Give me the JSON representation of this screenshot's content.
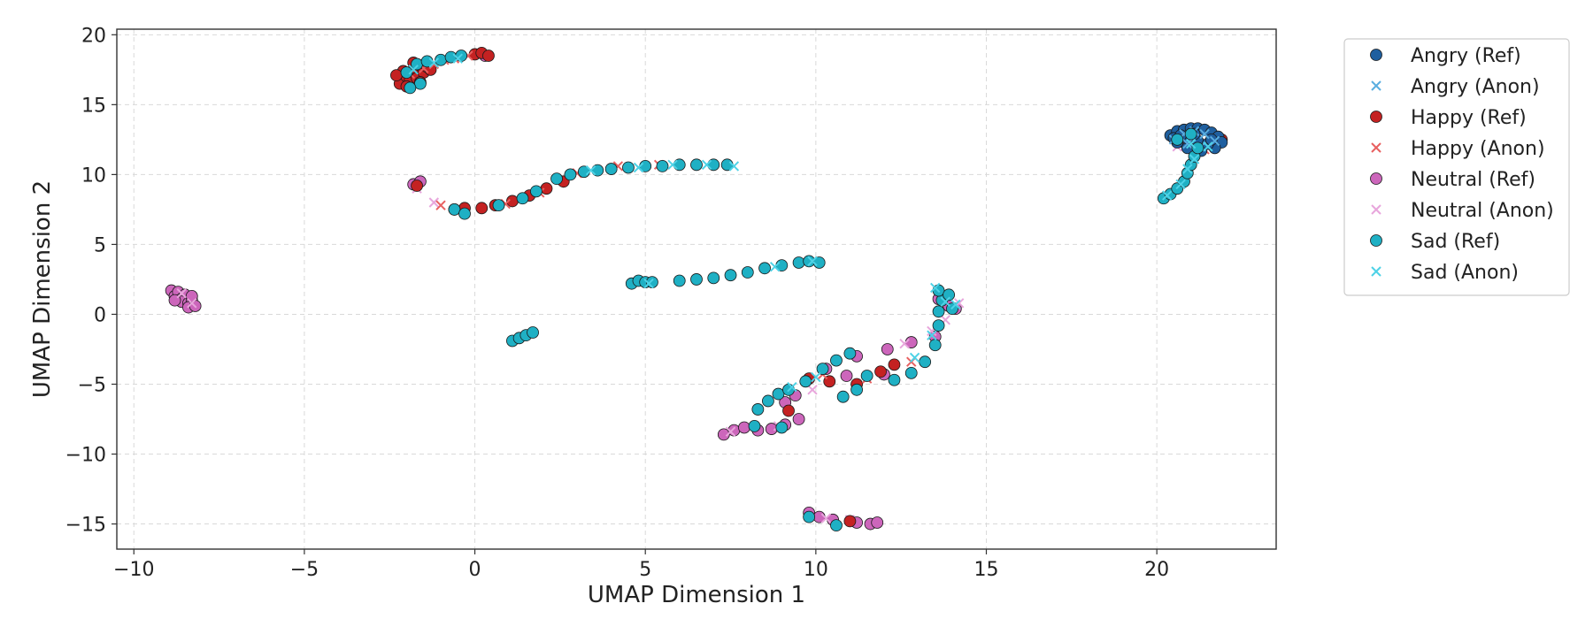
{
  "chart_data": {
    "type": "scatter",
    "title": "",
    "xlabel": "UMAP Dimension 1",
    "ylabel": "UMAP Dimension 2",
    "xlim": [
      -10.5,
      23.5
    ],
    "ylim": [
      -16.8,
      20.4
    ],
    "xticks": [
      -10,
      -5,
      0,
      5,
      10,
      15,
      20
    ],
    "yticks": [
      -15,
      -10,
      -5,
      0,
      5,
      10,
      15,
      20
    ],
    "grid": true,
    "legend_position": "outside-right-top",
    "legend": [
      {
        "label": "Angry (Ref)",
        "color": "#1f5f9f",
        "marker": "circle"
      },
      {
        "label": "Angry (Anon)",
        "color": "#5aaee0",
        "marker": "x"
      },
      {
        "label": "Happy (Ref)",
        "color": "#c42222",
        "marker": "circle"
      },
      {
        "label": "Happy (Anon)",
        "color": "#e86060",
        "marker": "x"
      },
      {
        "label": "Neutral (Ref)",
        "color": "#cc66bb",
        "marker": "circle"
      },
      {
        "label": "Neutral (Anon)",
        "color": "#e8a6dc",
        "marker": "x"
      },
      {
        "label": "Sad (Ref)",
        "color": "#1fb0c4",
        "marker": "circle"
      },
      {
        "label": "Sad (Anon)",
        "color": "#4ed2e6",
        "marker": "x"
      }
    ],
    "series": [
      {
        "name": "Angry (Ref)",
        "points": [
          [
            20.4,
            12.8
          ],
          [
            20.6,
            13.1
          ],
          [
            20.8,
            13.2
          ],
          [
            21.0,
            13.3
          ],
          [
            21.2,
            13.3
          ],
          [
            21.4,
            13.2
          ],
          [
            21.6,
            13.0
          ],
          [
            21.8,
            12.7
          ],
          [
            21.9,
            12.3
          ],
          [
            21.7,
            11.9
          ],
          [
            21.3,
            11.7
          ],
          [
            20.9,
            11.9
          ],
          [
            20.6,
            12.3
          ],
          [
            20.5,
            12.6
          ],
          [
            20.9,
            12.6
          ],
          [
            21.2,
            12.4
          ],
          [
            21.5,
            12.2
          ],
          [
            21.1,
            12.9
          ],
          [
            20.7,
            12.8
          ],
          [
            21.6,
            12.5
          ]
        ]
      },
      {
        "name": "Angry (Anon)",
        "points": [
          [
            20.5,
            12.5
          ],
          [
            20.8,
            12.9
          ],
          [
            21.1,
            13.1
          ],
          [
            21.4,
            12.9
          ],
          [
            21.7,
            12.4
          ],
          [
            21.3,
            12.0
          ],
          [
            20.9,
            12.2
          ],
          [
            21.0,
            12.7
          ]
        ]
      },
      {
        "name": "Happy (Ref)",
        "points": [
          [
            -2.2,
            16.5
          ],
          [
            -2.0,
            17.0
          ],
          [
            -1.8,
            17.5
          ],
          [
            -1.6,
            17.8
          ],
          [
            -2.1,
            17.4
          ],
          [
            -1.9,
            16.8
          ],
          [
            -1.7,
            16.9
          ],
          [
            -1.5,
            17.3
          ],
          [
            -1.4,
            17.7
          ],
          [
            -2.3,
            17.1
          ],
          [
            -1.8,
            18.0
          ],
          [
            -1.6,
            16.6
          ],
          [
            -1.3,
            17.5
          ],
          [
            -2.0,
            16.3
          ],
          [
            0.0,
            18.6
          ],
          [
            0.2,
            18.7
          ],
          [
            0.4,
            18.5
          ],
          [
            -0.6,
            7.5
          ],
          [
            -0.3,
            7.6
          ],
          [
            0.2,
            7.6
          ],
          [
            0.6,
            7.8
          ],
          [
            1.1,
            8.1
          ],
          [
            1.6,
            8.5
          ],
          [
            2.1,
            9.0
          ],
          [
            2.6,
            9.5
          ],
          [
            -1.7,
            9.2
          ],
          [
            9.8,
            -4.6
          ],
          [
            10.4,
            -4.8
          ],
          [
            11.2,
            -5.0
          ],
          [
            11.9,
            -4.1
          ],
          [
            12.3,
            -3.6
          ],
          [
            9.2,
            -6.9
          ],
          [
            11.0,
            -14.8
          ],
          [
            21.9,
            12.5
          ]
        ]
      },
      {
        "name": "Happy (Anon)",
        "points": [
          [
            -1.9,
            17.2
          ],
          [
            -1.5,
            17.6
          ],
          [
            -1.2,
            17.9
          ],
          [
            -0.9,
            18.2
          ],
          [
            -0.6,
            18.3
          ],
          [
            -0.2,
            18.5
          ],
          [
            -1.0,
            7.8
          ],
          [
            0.9,
            7.9
          ],
          [
            1.9,
            8.7
          ],
          [
            3.0,
            10.1
          ],
          [
            4.2,
            10.6
          ],
          [
            5.4,
            10.7
          ],
          [
            10.2,
            -4.3
          ],
          [
            11.5,
            -4.6
          ],
          [
            12.8,
            -3.4
          ],
          [
            21.4,
            11.8
          ]
        ]
      },
      {
        "name": "Neutral (Ref)",
        "points": [
          [
            -8.9,
            1.7
          ],
          [
            -8.8,
            1.3
          ],
          [
            -8.7,
            1.6
          ],
          [
            -8.6,
            1.1
          ],
          [
            -8.5,
            1.4
          ],
          [
            -8.6,
            0.9
          ],
          [
            -8.4,
            0.8
          ],
          [
            -8.3,
            1.0
          ],
          [
            -8.4,
            0.5
          ],
          [
            -8.2,
            0.6
          ],
          [
            -8.3,
            1.3
          ],
          [
            -8.8,
            1.0
          ],
          [
            -1.8,
            9.3
          ],
          [
            -1.6,
            9.5
          ],
          [
            0.3,
            18.5
          ],
          [
            7.3,
            -8.6
          ],
          [
            7.6,
            -8.3
          ],
          [
            7.9,
            -8.1
          ],
          [
            8.3,
            -8.3
          ],
          [
            8.7,
            -8.2
          ],
          [
            9.1,
            -7.9
          ],
          [
            9.5,
            -7.5
          ],
          [
            9.4,
            -5.8
          ],
          [
            9.1,
            -6.3
          ],
          [
            9.8,
            -14.2
          ],
          [
            10.1,
            -14.5
          ],
          [
            10.5,
            -14.7
          ],
          [
            11.2,
            -14.9
          ],
          [
            11.6,
            -15.0
          ],
          [
            11.8,
            -14.9
          ],
          [
            10.3,
            -3.9
          ],
          [
            11.2,
            -3.0
          ],
          [
            12.1,
            -2.5
          ],
          [
            12.8,
            -2.0
          ],
          [
            13.5,
            -1.6
          ],
          [
            13.6,
            1.1
          ],
          [
            13.9,
            0.6
          ],
          [
            14.1,
            0.4
          ],
          [
            12.0,
            -4.3
          ],
          [
            10.9,
            -4.4
          ],
          [
            21.0,
            12.6
          ],
          [
            20.8,
            12.3
          ]
        ]
      },
      {
        "name": "Neutral (Anon)",
        "points": [
          [
            -8.6,
            1.5
          ],
          [
            -8.3,
            0.8
          ],
          [
            -1.7,
            9.0
          ],
          [
            -1.2,
            8.0
          ],
          [
            7.5,
            -8.4
          ],
          [
            8.9,
            -8.0
          ],
          [
            10.3,
            -14.6
          ],
          [
            11.0,
            -14.7
          ],
          [
            12.6,
            -2.1
          ],
          [
            13.4,
            -1.2
          ],
          [
            14.2,
            0.8
          ],
          [
            13.8,
            -0.4
          ],
          [
            21.2,
            12.2
          ],
          [
            20.6,
            12.0
          ],
          [
            9.9,
            -5.4
          ]
        ]
      },
      {
        "name": "Sad (Ref)",
        "points": [
          [
            -2.0,
            17.3
          ],
          [
            -1.7,
            17.9
          ],
          [
            -1.4,
            18.1
          ],
          [
            -1.0,
            18.2
          ],
          [
            -0.7,
            18.4
          ],
          [
            -0.4,
            18.5
          ],
          [
            -1.6,
            16.5
          ],
          [
            -1.9,
            16.2
          ],
          [
            -0.6,
            7.5
          ],
          [
            -0.3,
            7.2
          ],
          [
            0.7,
            7.8
          ],
          [
            1.4,
            8.3
          ],
          [
            1.8,
            8.8
          ],
          [
            2.4,
            9.7
          ],
          [
            2.8,
            10.0
          ],
          [
            3.2,
            10.2
          ],
          [
            3.6,
            10.3
          ],
          [
            4.0,
            10.4
          ],
          [
            4.5,
            10.5
          ],
          [
            5.0,
            10.6
          ],
          [
            5.5,
            10.6
          ],
          [
            6.0,
            10.7
          ],
          [
            6.5,
            10.7
          ],
          [
            7.0,
            10.7
          ],
          [
            7.4,
            10.7
          ],
          [
            4.6,
            2.2
          ],
          [
            4.8,
            2.4
          ],
          [
            5.0,
            2.3
          ],
          [
            5.2,
            2.3
          ],
          [
            6.0,
            2.4
          ],
          [
            6.5,
            2.5
          ],
          [
            7.0,
            2.6
          ],
          [
            7.5,
            2.8
          ],
          [
            8.0,
            3.0
          ],
          [
            8.5,
            3.3
          ],
          [
            9.0,
            3.5
          ],
          [
            9.5,
            3.7
          ],
          [
            9.8,
            3.8
          ],
          [
            10.1,
            3.7
          ],
          [
            1.1,
            -1.9
          ],
          [
            1.3,
            -1.7
          ],
          [
            1.5,
            -1.5
          ],
          [
            1.7,
            -1.3
          ],
          [
            8.3,
            -6.8
          ],
          [
            8.6,
            -6.2
          ],
          [
            8.9,
            -5.7
          ],
          [
            9.2,
            -5.4
          ],
          [
            9.7,
            -4.8
          ],
          [
            10.2,
            -3.9
          ],
          [
            10.6,
            -3.3
          ],
          [
            11.0,
            -2.8
          ],
          [
            11.5,
            -4.4
          ],
          [
            10.8,
            -5.9
          ],
          [
            11.2,
            -5.4
          ],
          [
            12.3,
            -4.7
          ],
          [
            12.8,
            -4.2
          ],
          [
            13.2,
            -3.4
          ],
          [
            13.5,
            -2.2
          ],
          [
            13.6,
            -0.8
          ],
          [
            13.6,
            0.2
          ],
          [
            13.7,
            1.0
          ],
          [
            13.6,
            1.7
          ],
          [
            13.9,
            1.4
          ],
          [
            14.0,
            0.4
          ],
          [
            9.8,
            -14.5
          ],
          [
            10.6,
            -15.1
          ],
          [
            8.2,
            -8.0
          ],
          [
            9.0,
            -8.1
          ],
          [
            20.2,
            8.3
          ],
          [
            20.4,
            8.6
          ],
          [
            20.6,
            9.0
          ],
          [
            20.8,
            9.5
          ],
          [
            20.9,
            10.1
          ],
          [
            21.0,
            10.7
          ],
          [
            21.1,
            11.3
          ],
          [
            21.2,
            11.9
          ],
          [
            20.6,
            12.5
          ],
          [
            21.0,
            12.9
          ]
        ]
      },
      {
        "name": "Sad (Anon)",
        "points": [
          [
            -1.8,
            17.5
          ],
          [
            -1.2,
            18.0
          ],
          [
            -0.5,
            18.3
          ],
          [
            3.4,
            10.3
          ],
          [
            4.8,
            10.5
          ],
          [
            5.8,
            10.7
          ],
          [
            6.8,
            10.7
          ],
          [
            7.6,
            10.6
          ],
          [
            9.9,
            3.8
          ],
          [
            8.8,
            3.4
          ],
          [
            5.1,
            2.2
          ],
          [
            12.9,
            -3.1
          ],
          [
            13.4,
            -1.5
          ],
          [
            13.8,
            0.9
          ],
          [
            13.5,
            1.9
          ],
          [
            14.1,
            0.7
          ],
          [
            20.3,
            8.5
          ],
          [
            20.7,
            9.3
          ],
          [
            20.9,
            10.4
          ],
          [
            21.1,
            11.1
          ],
          [
            21.5,
            12.0
          ],
          [
            21.0,
            12.2
          ],
          [
            10.0,
            -4.5
          ],
          [
            9.3,
            -5.2
          ]
        ]
      }
    ]
  }
}
